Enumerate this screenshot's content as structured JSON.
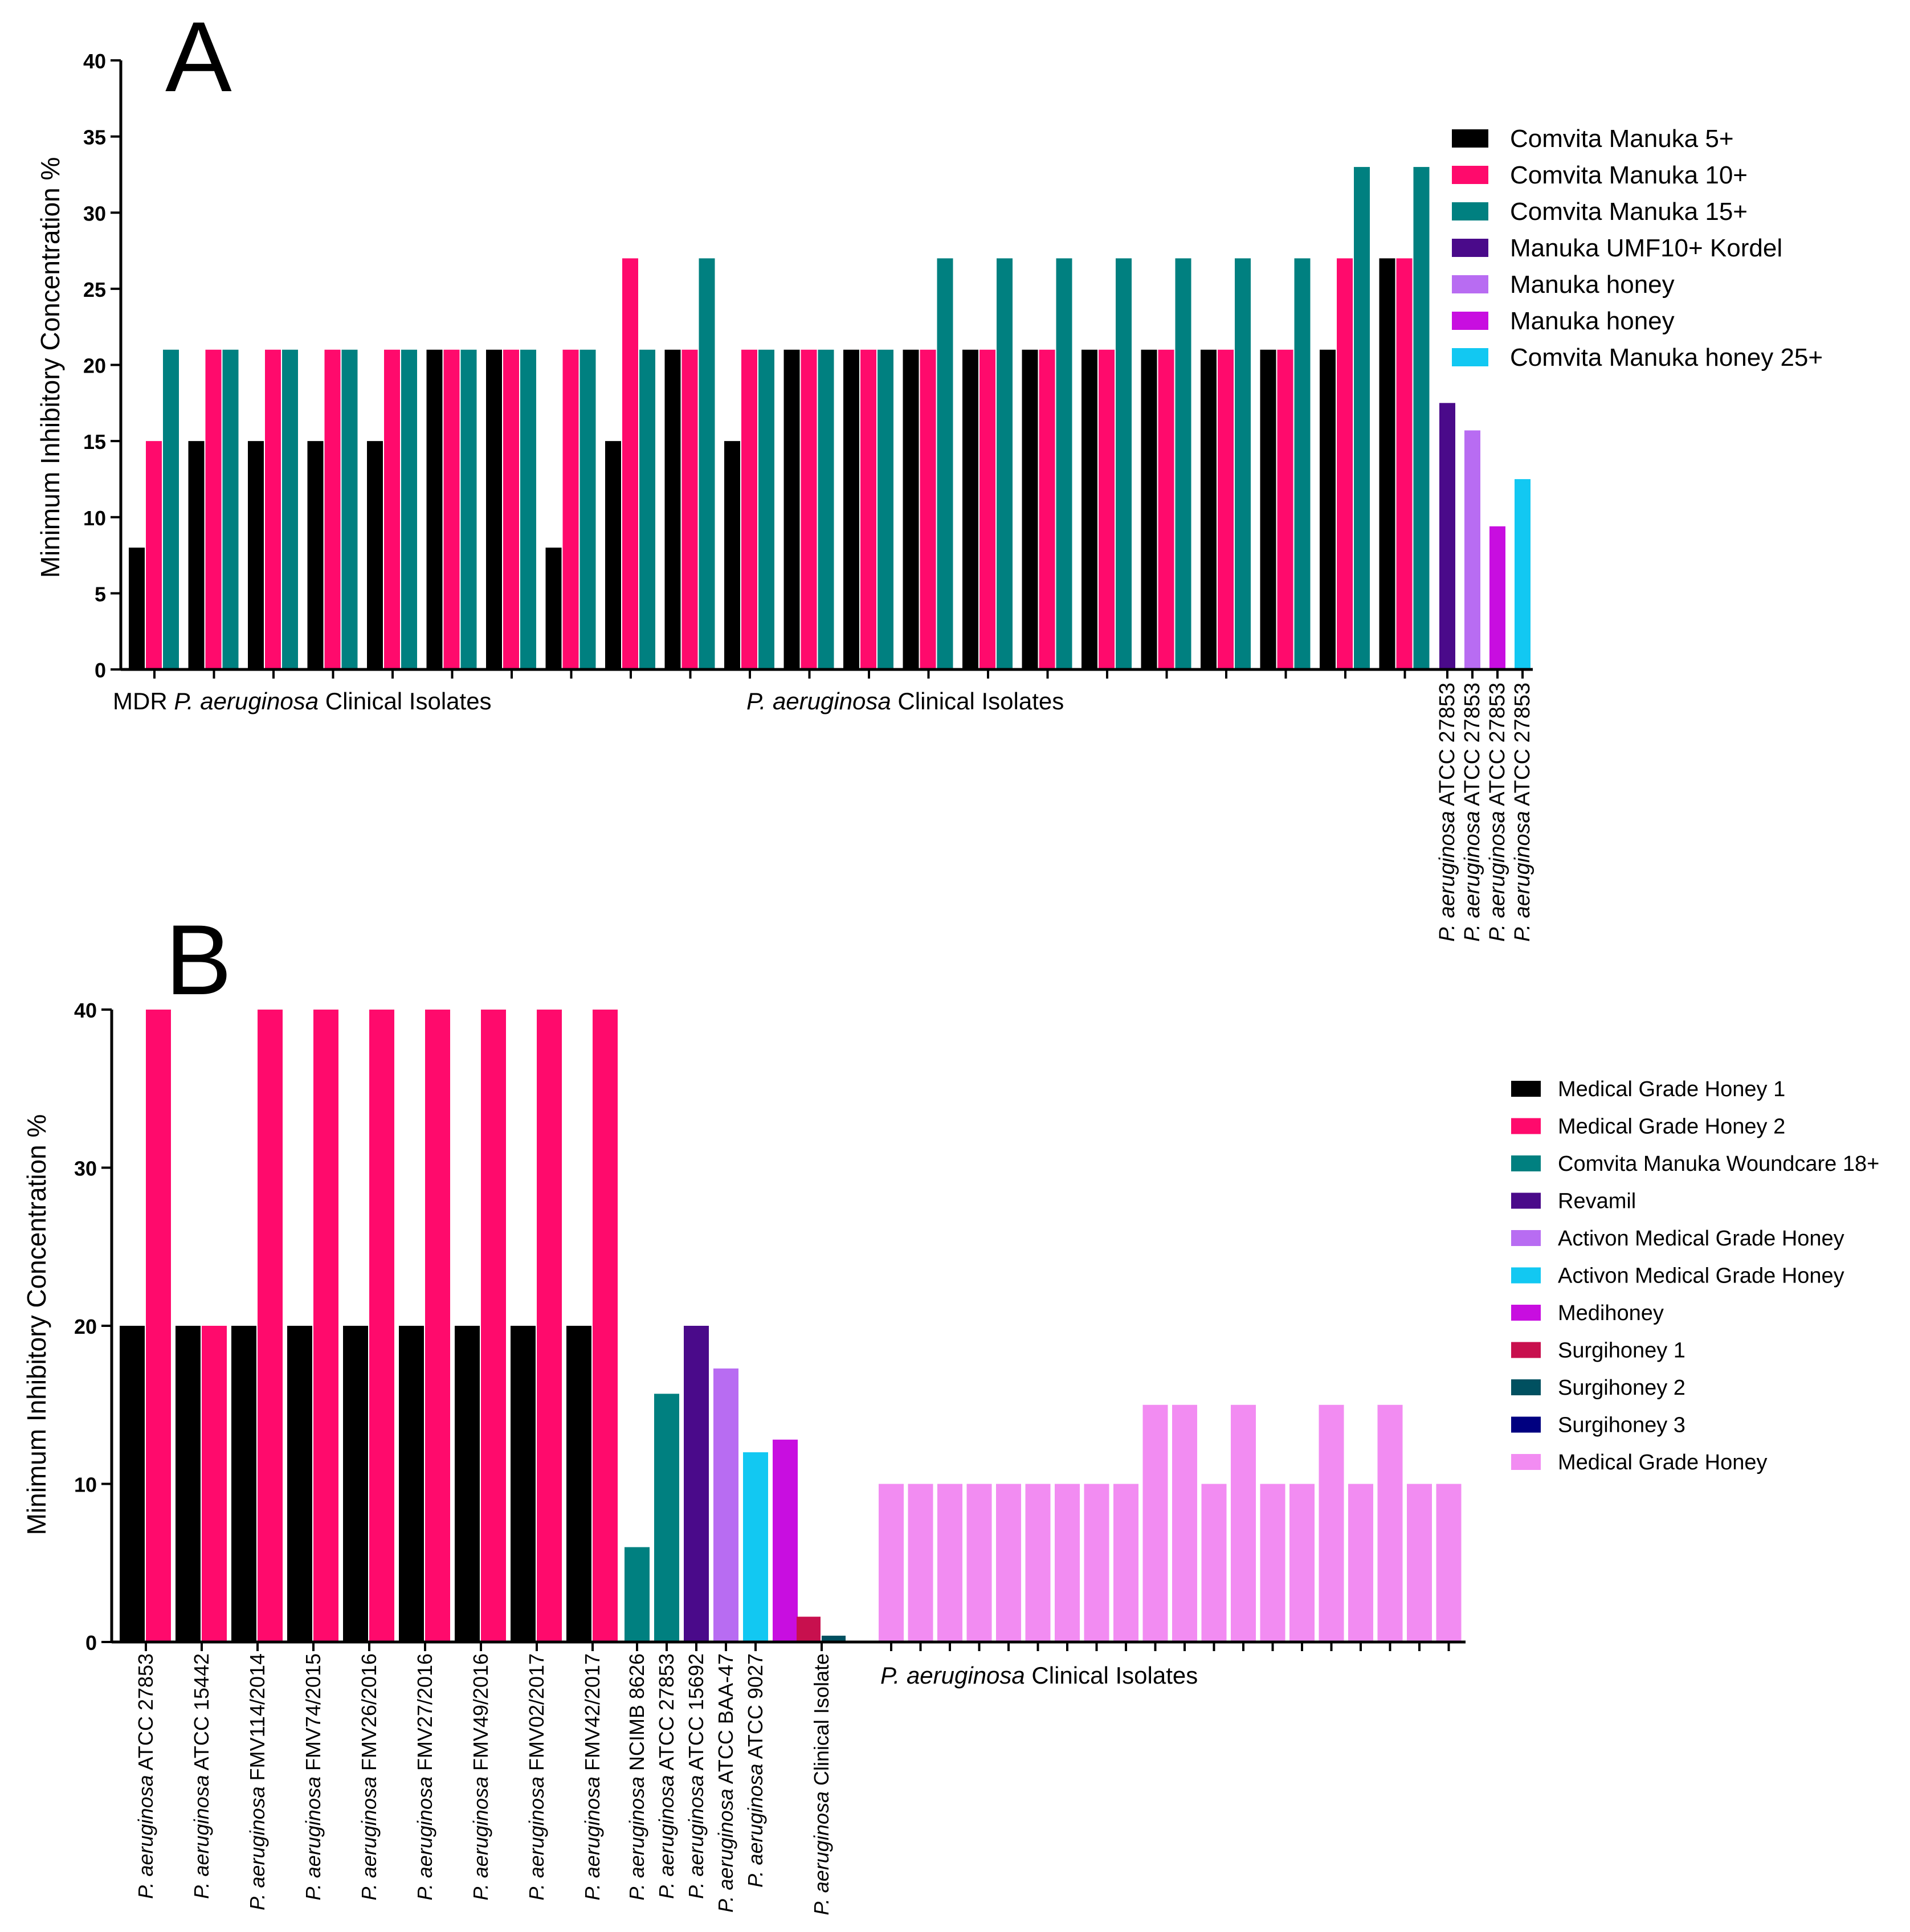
{
  "chart_data": [
    {
      "panel_label": "A",
      "type": "bar",
      "ylabel": "Minimum Inhibitory Concentration %",
      "ylim": [
        0,
        40
      ],
      "yticks": [
        0,
        5,
        10,
        15,
        20,
        25,
        30,
        35,
        40
      ],
      "group_labels": [
        {
          "italic": "",
          "text": "MDR "
        },
        {
          "italic": "P. aeruginosa",
          "text": " Clinical Isolates"
        },
        {
          "italic": "P. aeruginosa",
          "text": " Clinical Isolates"
        }
      ],
      "legend_position": "top-right",
      "series": [
        {
          "name": "Comvita Manuka 5+",
          "color": "#000000"
        },
        {
          "name": "Comvita Manuka 10+",
          "color": "#ff0a6c"
        },
        {
          "name": "Comvita Manuka 15+",
          "color": "#008080"
        },
        {
          "name": "Manuka UMF10+ Kordel",
          "color": "#4a0a8a"
        },
        {
          "name": "Manuka honey",
          "color": "#b86cf2"
        },
        {
          "name": "Manuka honey",
          "color": "#c80ee0"
        },
        {
          "name": "Comvita Manuka honey 25+",
          "color": "#12c8f2"
        }
      ],
      "groups": [
        {
          "values": [
            8,
            15,
            21
          ]
        },
        {
          "values": [
            15,
            21,
            21
          ]
        },
        {
          "values": [
            15,
            21,
            21
          ]
        },
        {
          "values": [
            15,
            21,
            21
          ]
        },
        {
          "values": [
            15,
            21,
            21
          ]
        },
        {
          "values": [
            21,
            21,
            21
          ]
        },
        {
          "values": [
            21,
            21,
            21
          ]
        },
        {
          "values": [
            8,
            21,
            21
          ]
        },
        {
          "values": [
            15,
            27,
            21
          ]
        },
        {
          "values": [
            21,
            21,
            27
          ]
        },
        {
          "values": [
            15,
            21,
            21
          ]
        },
        {
          "values": [
            21,
            21,
            21
          ]
        },
        {
          "values": [
            21,
            21,
            21
          ]
        },
        {
          "values": [
            21,
            21,
            27
          ]
        },
        {
          "values": [
            21,
            21,
            27
          ]
        },
        {
          "values": [
            21,
            21,
            27
          ]
        },
        {
          "values": [
            21,
            21,
            27
          ]
        },
        {
          "values": [
            21,
            21,
            27
          ]
        },
        {
          "values": [
            21,
            21,
            27
          ]
        },
        {
          "values": [
            21,
            21,
            27
          ]
        },
        {
          "values": [
            21,
            27,
            33
          ]
        },
        {
          "values": [
            27,
            27,
            33
          ]
        }
      ],
      "single_bars": [
        {
          "series": 3,
          "value": 17.5,
          "label_italic": "P. aeruginosa",
          "label": " ATCC 27853"
        },
        {
          "series": 4,
          "value": 15.7,
          "label_italic": "P. aeruginosa",
          "label": " ATCC 27853"
        },
        {
          "series": 5,
          "value": 9.4,
          "label_italic": "P. aeruginosa",
          "label": " ATCC 27853"
        },
        {
          "series": 6,
          "value": 12.5,
          "label_italic": "P. aeruginosa",
          "label": " ATCC 27853"
        }
      ]
    },
    {
      "panel_label": "B",
      "type": "bar",
      "ylabel": "Minimum Inhibitory Concentration %",
      "ylim": [
        0,
        40
      ],
      "yticks": [
        0,
        10,
        20,
        30,
        40
      ],
      "legend_position": "right",
      "series": [
        {
          "name": "Medical Grade Honey 1",
          "color": "#000000"
        },
        {
          "name": "Medical Grade Honey 2",
          "color": "#ff0a6c"
        },
        {
          "name": "Comvita Manuka Woundcare 18+",
          "color": "#008080"
        },
        {
          "name": "Revamil",
          "color": "#4a0a8a"
        },
        {
          "name": "Activon Medical Grade Honey",
          "color": "#b86cf2"
        },
        {
          "name": "Activon Medical Grade Honey",
          "color": "#12c8f2"
        },
        {
          "name": "Medihoney",
          "color": "#c80ee0"
        },
        {
          "name": "Surgihoney 1",
          "color": "#c8104e"
        },
        {
          "name": "Surgihoney 2",
          "color": "#005060"
        },
        {
          "name": "Surgihoney 3",
          "color": "#000080"
        },
        {
          "name": "Medical Grade Honey",
          "color": "#f28cf2"
        }
      ],
      "pairs": [
        {
          "label_italic": "P. aeruginosa",
          "label": " ATCC 27853",
          "values": [
            20,
            40
          ]
        },
        {
          "label_italic": "P. aeruginosa",
          "label": " ATCC 15442",
          "values": [
            20,
            20
          ]
        },
        {
          "label_italic": "P. aeruginosa",
          "label": " FMV114/2014",
          "values": [
            20,
            40
          ]
        },
        {
          "label_italic": "P. aeruginosa",
          "label": " FMV74/2015",
          "values": [
            20,
            40
          ]
        },
        {
          "label_italic": "P. aeruginosa",
          "label": " FMV26/2016",
          "values": [
            20,
            40
          ]
        },
        {
          "label_italic": "P. aeruginosa",
          "label": " FMV27/2016",
          "values": [
            20,
            40
          ]
        },
        {
          "label_italic": "P. aeruginosa",
          "label": " FMV49/2016",
          "values": [
            20,
            40
          ]
        },
        {
          "label_italic": "P. aeruginosa",
          "label": " FMV02/2017",
          "values": [
            20,
            40
          ]
        },
        {
          "label_italic": "P. aeruginosa",
          "label": " FMV42/2017",
          "values": [
            20,
            40
          ]
        }
      ],
      "single_bars": [
        {
          "series": 2,
          "value": 6,
          "label_italic": "P. aeruginosa",
          "label": " NCIMB 8626"
        },
        {
          "series": 2,
          "value": 15.7,
          "label_italic": "P. aeruginosa",
          "label": " ATCC 27853"
        },
        {
          "series": 3,
          "value": 20,
          "label_italic": "P. aeruginosa",
          "label": " ATCC 15692"
        },
        {
          "series": 4,
          "value": 17.3,
          "label_italic": "P. aeruginosa",
          "label": " ATCC BAA-47"
        },
        {
          "series": 5,
          "value": 12,
          "label_italic": "P. aeruginosa",
          "label": " ATCC 9027"
        },
        {
          "series": 6,
          "value": 12.8,
          "label_italic": "",
          "label": ""
        }
      ],
      "surgihoney_group": {
        "label_italic": "P. aeruginosa",
        "label": " Clinical Isolate",
        "bars": [
          {
            "series": 7,
            "value": 1.6
          },
          {
            "series": 8,
            "value": 0.4
          },
          {
            "series": 9,
            "value": 0
          }
        ]
      },
      "clinical_isolates": {
        "label_italic": "P. aeruginosa",
        "label": " Clinical Isolates",
        "series": 10,
        "values": [
          10,
          10,
          10,
          10,
          10,
          10,
          10,
          10,
          10,
          15,
          15,
          10,
          15,
          10,
          10,
          15,
          10,
          15,
          10,
          10
        ]
      }
    }
  ]
}
